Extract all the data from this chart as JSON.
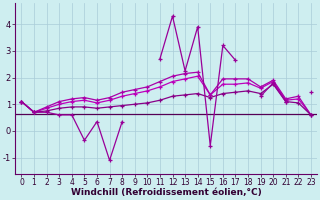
{
  "title": "",
  "xlabel": "Windchill (Refroidissement éolien,°C)",
  "xlim": [
    -0.5,
    23.5
  ],
  "ylim": [
    -1.6,
    4.8
  ],
  "xticks": [
    0,
    1,
    2,
    3,
    4,
    5,
    6,
    7,
    8,
    9,
    10,
    11,
    12,
    13,
    14,
    15,
    16,
    17,
    18,
    19,
    20,
    21,
    22,
    23
  ],
  "yticks": [
    -1,
    0,
    1,
    2,
    3,
    4
  ],
  "background_color": "#ceeef0",
  "grid_color": "#aaccd8",
  "line_color1": "#990099",
  "line_color2": "#bb00bb",
  "line_color3": "#aa00aa",
  "line_color4": "#880088",
  "series1": [
    1.1,
    0.7,
    0.7,
    0.6,
    0.6,
    -0.35,
    0.35,
    -1.1,
    0.35,
    null,
    null,
    2.7,
    4.3,
    2.25,
    3.9,
    -0.55,
    3.2,
    2.65,
    null,
    1.3,
    1.8,
    1.1,
    null,
    1.45
  ],
  "series2": [
    1.1,
    0.7,
    0.75,
    0.85,
    0.9,
    0.9,
    0.85,
    0.9,
    0.95,
    1.0,
    1.05,
    1.15,
    1.3,
    1.35,
    1.4,
    1.25,
    1.4,
    1.45,
    1.5,
    1.4,
    1.75,
    1.1,
    1.05,
    0.6
  ],
  "series3": [
    1.1,
    0.7,
    0.85,
    1.0,
    1.1,
    1.15,
    1.05,
    1.15,
    1.3,
    1.4,
    1.5,
    1.65,
    1.85,
    1.95,
    2.05,
    1.35,
    1.75,
    1.75,
    1.8,
    1.6,
    1.85,
    1.15,
    1.2,
    0.6
  ],
  "series4": [
    1.1,
    0.7,
    0.9,
    1.1,
    1.2,
    1.25,
    1.15,
    1.25,
    1.45,
    1.55,
    1.65,
    1.85,
    2.05,
    2.15,
    2.2,
    1.35,
    1.95,
    1.95,
    1.95,
    1.65,
    1.9,
    1.2,
    1.3,
    0.6
  ],
  "hline_y": 0.65,
  "xlabel_fontsize": 6.5,
  "tick_fontsize": 5.5
}
